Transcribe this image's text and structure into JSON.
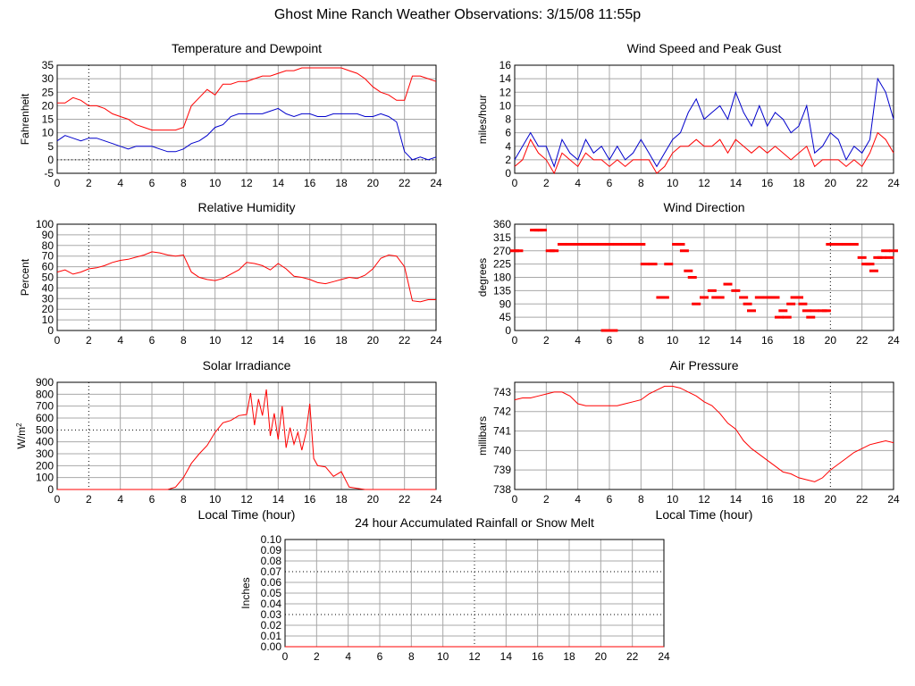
{
  "title": "Ghost Mine Ranch Weather Observations: 3/15/08 11:55p",
  "colors": {
    "red": "#ff0000",
    "blue": "#0000cc",
    "grid": "#a8a8a8",
    "frame": "#000000"
  },
  "chart_data": [
    {
      "id": "temperature",
      "type": "line",
      "title": "Temperature and Dewpoint",
      "xlabel": "",
      "ylabel": "Fahrenheit",
      "xlim": [
        0,
        24
      ],
      "ylim": [
        -5,
        35
      ],
      "x_ticks": [
        0,
        2,
        4,
        6,
        8,
        10,
        12,
        14,
        16,
        18,
        20,
        22,
        24
      ],
      "y_ticks": [
        -5,
        0,
        5,
        10,
        15,
        20,
        25,
        30,
        35
      ],
      "grid": true,
      "legend": "none",
      "series": [
        {
          "color": "red",
          "x": [
            0,
            0.5,
            1,
            1.5,
            2,
            2.5,
            3,
            3.5,
            4,
            4.5,
            5,
            5.5,
            6,
            6.5,
            7,
            7.5,
            8,
            8.5,
            9,
            9.5,
            10,
            10.5,
            11,
            11.5,
            12,
            12.5,
            13,
            13.5,
            14,
            14.5,
            15,
            15.5,
            16,
            16.5,
            17,
            17.5,
            18,
            18.5,
            19,
            19.5,
            20,
            20.5,
            21,
            21.5,
            22,
            22.5,
            23,
            23.5,
            24
          ],
          "y": [
            21,
            21,
            23,
            22,
            20,
            20,
            19,
            17,
            16,
            15,
            13,
            12,
            11,
            11,
            11,
            11,
            12,
            20,
            23,
            26,
            24,
            28,
            28,
            29,
            29,
            30,
            31,
            31,
            32,
            33,
            33,
            34,
            34,
            34,
            34,
            34,
            34,
            33,
            32,
            30,
            27,
            25,
            24,
            22,
            22,
            31,
            31,
            30,
            29
          ]
        },
        {
          "color": "blue",
          "x": [
            0,
            0.5,
            1,
            1.5,
            2,
            2.5,
            3,
            3.5,
            4,
            4.5,
            5,
            5.5,
            6,
            6.5,
            7,
            7.5,
            8,
            8.5,
            9,
            9.5,
            10,
            10.5,
            11,
            11.5,
            12,
            12.5,
            13,
            13.5,
            14,
            14.5,
            15,
            15.5,
            16,
            16.5,
            17,
            17.5,
            18,
            18.5,
            19,
            19.5,
            20,
            20.5,
            21,
            21.5,
            22,
            22.5,
            23,
            23.5,
            24
          ],
          "y": [
            7,
            9,
            8,
            7,
            8,
            8,
            7,
            6,
            5,
            4,
            5,
            5,
            5,
            4,
            3,
            3,
            4,
            6,
            7,
            9,
            12,
            13,
            16,
            17,
            17,
            17,
            17,
            18,
            19,
            17,
            16,
            17,
            17,
            16,
            16,
            17,
            17,
            17,
            17,
            16,
            16,
            17,
            16,
            14,
            3,
            0,
            1,
            0,
            1
          ]
        }
      ]
    },
    {
      "id": "wind-speed",
      "type": "line",
      "title": "Wind Speed and Peak Gust",
      "xlabel": "",
      "ylabel": "miles/hour",
      "xlim": [
        0,
        24
      ],
      "ylim": [
        0,
        16
      ],
      "x_ticks": [
        0,
        2,
        4,
        6,
        8,
        10,
        12,
        14,
        16,
        18,
        20,
        22,
        24
      ],
      "y_ticks": [
        0,
        2,
        4,
        6,
        8,
        10,
        12,
        14,
        16
      ],
      "grid": true,
      "legend": "none",
      "series": [
        {
          "color": "blue",
          "x": [
            0,
            0.5,
            1,
            1.5,
            2,
            2.5,
            3,
            3.5,
            4,
            4.5,
            5,
            5.5,
            6,
            6.5,
            7,
            7.5,
            8,
            8.5,
            9,
            9.5,
            10,
            10.5,
            11,
            11.5,
            12,
            12.5,
            13,
            13.5,
            14,
            14.5,
            15,
            15.5,
            16,
            16.5,
            17,
            17.5,
            18,
            18.5,
            19,
            19.5,
            20,
            20.5,
            21,
            21.5,
            22,
            22.5,
            23,
            23.5,
            24
          ],
          "y": [
            2,
            4,
            6,
            4,
            4,
            1,
            5,
            3,
            2,
            5,
            3,
            4,
            2,
            4,
            2,
            3,
            5,
            3,
            1,
            3,
            5,
            6,
            9,
            11,
            8,
            9,
            10,
            8,
            12,
            9,
            7,
            10,
            7,
            9,
            8,
            6,
            7,
            10,
            3,
            4,
            6,
            5,
            2,
            4,
            3,
            5,
            14,
            12,
            8
          ]
        },
        {
          "color": "red",
          "x": [
            0,
            0.5,
            1,
            1.5,
            2,
            2.5,
            3,
            3.5,
            4,
            4.5,
            5,
            5.5,
            6,
            6.5,
            7,
            7.5,
            8,
            8.5,
            9,
            9.5,
            10,
            10.5,
            11,
            11.5,
            12,
            12.5,
            13,
            13.5,
            14,
            14.5,
            15,
            15.5,
            16,
            16.5,
            17,
            17.5,
            18,
            18.5,
            19,
            19.5,
            20,
            20.5,
            21,
            21.5,
            22,
            22.5,
            23,
            23.5,
            24
          ],
          "y": [
            1,
            2,
            5,
            3,
            2,
            0,
            3,
            2,
            1,
            3,
            2,
            2,
            1,
            2,
            1,
            2,
            2,
            2,
            0,
            1,
            3,
            4,
            4,
            5,
            4,
            4,
            5,
            3,
            5,
            4,
            3,
            4,
            3,
            4,
            3,
            2,
            3,
            4,
            1,
            2,
            2,
            2,
            1,
            2,
            1,
            3,
            6,
            5,
            3
          ]
        }
      ]
    },
    {
      "id": "humidity",
      "type": "line",
      "title": "Relative Humidity",
      "xlabel": "",
      "ylabel": "Percent",
      "xlim": [
        0,
        24
      ],
      "ylim": [
        0,
        100
      ],
      "x_ticks": [
        0,
        2,
        4,
        6,
        8,
        10,
        12,
        14,
        16,
        18,
        20,
        22,
        24
      ],
      "y_ticks": [
        0,
        10,
        20,
        30,
        40,
        50,
        60,
        70,
        80,
        90,
        100
      ],
      "grid": true,
      "legend": "none",
      "series": [
        {
          "color": "red",
          "x": [
            0,
            0.5,
            1,
            1.5,
            2,
            2.5,
            3,
            3.5,
            4,
            4.5,
            5,
            5.5,
            6,
            6.5,
            7,
            7.5,
            8,
            8.5,
            9,
            9.5,
            10,
            10.5,
            11,
            11.5,
            12,
            12.5,
            13,
            13.5,
            14,
            14.5,
            15,
            15.5,
            16,
            16.5,
            17,
            17.5,
            18,
            18.5,
            19,
            19.5,
            20,
            20.5,
            21,
            21.5,
            22,
            22.5,
            23,
            23.5,
            24
          ],
          "y": [
            55,
            57,
            53,
            55,
            58,
            59,
            61,
            64,
            66,
            67,
            69,
            71,
            74,
            73,
            71,
            70,
            71,
            55,
            50,
            48,
            47,
            49,
            53,
            57,
            64,
            63,
            61,
            57,
            63,
            58,
            51,
            50,
            48,
            45,
            44,
            46,
            48,
            50,
            49,
            52,
            58,
            68,
            71,
            70,
            60,
            28,
            27,
            29,
            29
          ]
        }
      ]
    },
    {
      "id": "wind-direction",
      "type": "scatter",
      "title": "Wind Direction",
      "xlabel": "",
      "ylabel": "degrees",
      "xlim": [
        0,
        24
      ],
      "ylim": [
        0,
        360
      ],
      "x_ticks": [
        0,
        2,
        4,
        6,
        8,
        10,
        12,
        14,
        16,
        18,
        20,
        22,
        24
      ],
      "y_ticks": [
        0,
        45,
        90,
        135,
        180,
        225,
        270,
        315,
        360
      ],
      "grid": true,
      "legend": "none",
      "series": [
        {
          "color": "red",
          "x": [
            0,
            0.25,
            1.25,
            1.5,
            1.75,
            2.25,
            2.5,
            3,
            3.5,
            4,
            4.5,
            5,
            5.5,
            6,
            6.5,
            7,
            7.5,
            8,
            5.75,
            6.25,
            8.25,
            8.75,
            9.25,
            9.5,
            9.75,
            10.25,
            10.5,
            10.75,
            11,
            11.25,
            11.5,
            12,
            12.5,
            12.75,
            13,
            13.5,
            14,
            14.5,
            14.75,
            15,
            15.5,
            16,
            16.25,
            16.5,
            16.75,
            17,
            17.25,
            17.5,
            17.75,
            18,
            18.25,
            18.5,
            18.75,
            19,
            19.5,
            19.75,
            20,
            20.5,
            21,
            21.5,
            22,
            22.25,
            22.5,
            22.75,
            23,
            23.25,
            23.5,
            23.75,
            24
          ],
          "y": [
            270,
            270,
            340,
            340,
            340,
            270,
            270,
            292,
            292,
            292,
            292,
            292,
            292,
            292,
            292,
            292,
            292,
            292,
            0,
            0,
            225,
            225,
            112,
            112,
            225,
            292,
            292,
            270,
            202,
            180,
            90,
            112,
            135,
            112,
            112,
            157,
            135,
            112,
            90,
            67,
            112,
            112,
            112,
            112,
            45,
            67,
            45,
            90,
            112,
            112,
            90,
            67,
            45,
            67,
            67,
            67,
            292,
            292,
            292,
            292,
            247,
            225,
            225,
            202,
            247,
            247,
            270,
            247,
            270
          ]
        }
      ]
    },
    {
      "id": "solar",
      "type": "line",
      "title": "Solar Irradiance",
      "xlabel": "Local Time (hour)",
      "ylabel": "W/m",
      "ylabel_sup": "2",
      "xlim": [
        0,
        24
      ],
      "ylim": [
        0,
        900
      ],
      "x_ticks": [
        0,
        2,
        4,
        6,
        8,
        10,
        12,
        14,
        16,
        18,
        20,
        22,
        24
      ],
      "y_ticks": [
        0,
        100,
        200,
        300,
        400,
        500,
        600,
        700,
        800,
        900
      ],
      "grid": true,
      "legend": "none",
      "series": [
        {
          "color": "red",
          "x": [
            0,
            7,
            7.5,
            8,
            8.5,
            9,
            9.5,
            10,
            10.5,
            11,
            11.5,
            12,
            12.25,
            12.5,
            12.75,
            13,
            13.25,
            13.5,
            13.75,
            14,
            14.25,
            14.5,
            14.75,
            15,
            15.25,
            15.5,
            15.75,
            16,
            16.25,
            16.5,
            17,
            17.5,
            18,
            18.5,
            19,
            19.5,
            20,
            24
          ],
          "y": [
            0,
            0,
            20,
            100,
            220,
            300,
            370,
            480,
            560,
            580,
            620,
            630,
            810,
            540,
            760,
            620,
            840,
            450,
            640,
            420,
            700,
            350,
            520,
            380,
            480,
            330,
            470,
            720,
            260,
            200,
            190,
            110,
            150,
            20,
            10,
            0,
            0,
            0
          ]
        }
      ]
    },
    {
      "id": "pressure",
      "type": "line",
      "title": "Air Pressure",
      "xlabel": "Local Time (hour)",
      "ylabel": "millibars",
      "xlim": [
        0,
        24
      ],
      "ylim": [
        738,
        743.5
      ],
      "x_ticks": [
        0,
        2,
        4,
        6,
        8,
        10,
        12,
        14,
        16,
        18,
        20,
        22,
        24
      ],
      "y_ticks": [
        738,
        739,
        740,
        741,
        742,
        743
      ],
      "grid": true,
      "legend": "none",
      "series": [
        {
          "color": "red",
          "x": [
            0,
            0.5,
            1,
            1.5,
            2,
            2.5,
            3,
            3.5,
            4,
            4.5,
            5,
            5.5,
            6,
            6.5,
            7,
            7.5,
            8,
            8.5,
            9,
            9.5,
            10,
            10.5,
            11,
            11.5,
            12,
            12.5,
            13,
            13.5,
            14,
            14.5,
            15,
            15.5,
            16,
            16.5,
            17,
            17.5,
            18,
            18.5,
            19,
            19.5,
            20,
            20.5,
            21,
            21.5,
            22,
            22.5,
            23,
            23.5,
            24
          ],
          "y": [
            742.6,
            742.7,
            742.7,
            742.8,
            742.9,
            743,
            743,
            742.8,
            742.4,
            742.3,
            742.3,
            742.3,
            742.3,
            742.3,
            742.4,
            742.5,
            742.6,
            742.9,
            743.1,
            743.3,
            743.3,
            743.2,
            743,
            742.8,
            742.5,
            742.3,
            741.9,
            741.4,
            741.1,
            740.5,
            740.1,
            739.8,
            739.5,
            739.2,
            738.9,
            738.8,
            738.6,
            738.5,
            738.4,
            738.6,
            739,
            739.3,
            739.6,
            739.9,
            740.1,
            740.3,
            740.4,
            740.5,
            740.4
          ]
        }
      ]
    },
    {
      "id": "rainfall",
      "type": "line",
      "title": "24 hour Accumulated Rainfall or Snow Melt",
      "xlabel": "",
      "ylabel": "Inches",
      "xlim": [
        0,
        24
      ],
      "ylim": [
        0,
        0.1
      ],
      "x_ticks": [
        0,
        2,
        4,
        6,
        8,
        10,
        12,
        14,
        16,
        18,
        20,
        22,
        24
      ],
      "y_ticks": [
        0,
        0.01,
        0.02,
        0.03,
        0.04,
        0.05,
        0.06,
        0.07,
        0.08,
        0.09,
        0.1
      ],
      "y_tick_labels": [
        "0.00",
        "0.01",
        "0.02",
        "0.03",
        "0.04",
        "0.05",
        "0.06",
        "0.07",
        "0.08",
        "0.09",
        "0.10"
      ],
      "grid": true,
      "legend": "none",
      "series": [
        {
          "color": "red",
          "x": [
            0,
            24
          ],
          "y": [
            0,
            0
          ]
        }
      ]
    }
  ]
}
